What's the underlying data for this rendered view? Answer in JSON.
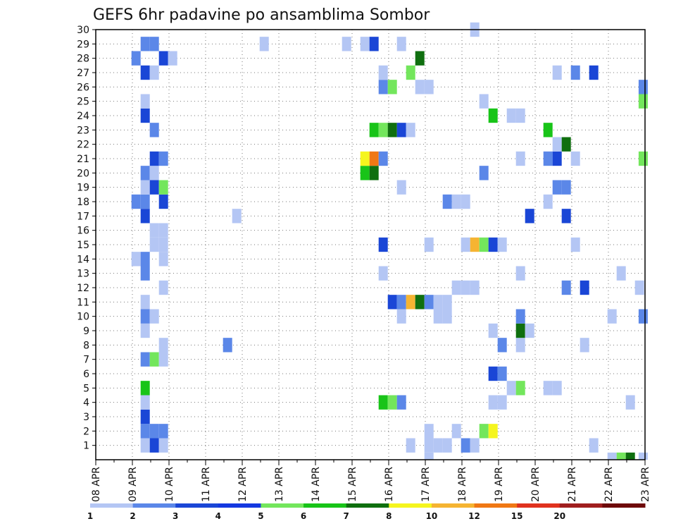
{
  "chart_data": {
    "type": "heatmap",
    "title": "GEFS 6hr padavine po ansamblima Sombor",
    "xlabel": "",
    "ylabel": "",
    "x_tick_labels": [
      "08 APR",
      "09 APR",
      "10 APR",
      "11 APR",
      "12 APR",
      "13 APR",
      "14 APR",
      "15 APR",
      "16 APR",
      "17 APR",
      "18 APR",
      "19 APR",
      "20 APR",
      "21 APR",
      "22 APR",
      "23 APR"
    ],
    "x_range_days": [
      8,
      23
    ],
    "y_tick_labels": [
      "1",
      "2",
      "3",
      "4",
      "5",
      "6",
      "7",
      "8",
      "9",
      "10",
      "11",
      "12",
      "13",
      "14",
      "15",
      "16",
      "17",
      "18",
      "19",
      "20",
      "21",
      "22",
      "23",
      "24",
      "25",
      "26",
      "27",
      "28",
      "29",
      "30"
    ],
    "ylim": [
      0,
      30
    ],
    "grid": "dotted",
    "colorbar": {
      "tick_labels": [
        "1",
        "2",
        "3",
        "4",
        "5",
        "6",
        "7",
        "8",
        "10",
        "12",
        "15",
        "20"
      ],
      "bounds": [
        1,
        2,
        3,
        4,
        5,
        6,
        7,
        8,
        10,
        12,
        15,
        20,
        25
      ],
      "colors": [
        "#b4c6f4",
        "#5b87e8",
        "#1a46d6",
        "#1438e0",
        "#73e65c",
        "#18c418",
        "#0f6f0f",
        "#f5f51e",
        "#f5b432",
        "#f07814",
        "#e0321e",
        "#a01e1e",
        "#6e0a0a"
      ]
    },
    "points": [
      [
        1,
        9.35,
        1.5
      ],
      [
        1,
        9.6,
        3.5
      ],
      [
        1,
        9.85,
        1.5
      ],
      [
        1,
        16.6,
        1.5
      ],
      [
        1,
        17.1,
        1.5
      ],
      [
        1,
        17.35,
        1.5
      ],
      [
        1,
        17.6,
        1.5
      ],
      [
        1,
        18.1,
        2.5
      ],
      [
        1,
        18.35,
        1.5
      ],
      [
        1,
        21.6,
        1.5
      ],
      [
        2,
        9.35,
        2.5
      ],
      [
        2,
        9.6,
        2.5
      ],
      [
        2,
        9.85,
        2.5
      ],
      [
        2,
        17.1,
        1.5
      ],
      [
        2,
        17.85,
        1.5
      ],
      [
        2,
        18.6,
        5.5
      ],
      [
        2,
        18.85,
        9
      ],
      [
        3,
        9.35,
        3.5
      ],
      [
        4,
        9.35,
        1.5
      ],
      [
        4,
        15.85,
        6.5
      ],
      [
        4,
        16.1,
        5.5
      ],
      [
        4,
        16.35,
        2.5
      ],
      [
        4,
        18.85,
        1.5
      ],
      [
        4,
        19.1,
        1.5
      ],
      [
        4,
        22.6,
        1.5
      ],
      [
        5,
        9.35,
        6.5
      ],
      [
        5,
        19.35,
        1.5
      ],
      [
        5,
        19.6,
        5.5
      ],
      [
        5,
        20.35,
        1.5
      ],
      [
        5,
        20.6,
        1.5
      ],
      [
        6,
        18.85,
        3.5
      ],
      [
        6,
        19.1,
        2.5
      ],
      [
        7,
        9.35,
        2.5
      ],
      [
        7,
        9.6,
        5.5
      ],
      [
        7,
        9.85,
        1.5
      ],
      [
        8,
        9.85,
        1.5
      ],
      [
        8,
        11.6,
        2.5
      ],
      [
        8,
        19.1,
        2.5
      ],
      [
        8,
        19.6,
        1.5
      ],
      [
        8,
        21.35,
        1.5
      ],
      [
        9,
        9.35,
        1.5
      ],
      [
        9,
        18.85,
        1.5
      ],
      [
        9,
        19.6,
        7.5
      ],
      [
        9,
        19.85,
        1.5
      ],
      [
        10,
        9.35,
        2.5
      ],
      [
        10,
        9.6,
        1.5
      ],
      [
        10,
        16.35,
        1.5
      ],
      [
        10,
        17.35,
        1.5
      ],
      [
        10,
        17.6,
        1.5
      ],
      [
        10,
        19.6,
        2.5
      ],
      [
        10,
        22.1,
        1.5
      ],
      [
        10,
        22.95,
        2.5
      ],
      [
        11,
        9.35,
        1.5
      ],
      [
        11,
        16.1,
        3.5
      ],
      [
        11,
        16.35,
        2.5
      ],
      [
        11,
        16.6,
        11
      ],
      [
        11,
        16.85,
        7.5
      ],
      [
        11,
        17.1,
        2.5
      ],
      [
        11,
        17.35,
        1.5
      ],
      [
        11,
        17.6,
        1.5
      ],
      [
        12,
        9.85,
        1.5
      ],
      [
        12,
        17.85,
        1.5
      ],
      [
        12,
        18.1,
        1.5
      ],
      [
        12,
        18.35,
        1.5
      ],
      [
        12,
        20.85,
        2.5
      ],
      [
        12,
        21.35,
        3.5
      ],
      [
        12,
        22.85,
        1.5
      ],
      [
        13,
        9.35,
        2.5
      ],
      [
        13,
        15.85,
        1.5
      ],
      [
        13,
        19.6,
        1.5
      ],
      [
        13,
        22.35,
        1.5
      ],
      [
        14,
        9.1,
        1.5
      ],
      [
        14,
        9.35,
        2.5
      ],
      [
        14,
        9.85,
        1.5
      ],
      [
        15,
        9.6,
        1.5
      ],
      [
        15,
        9.85,
        1.5
      ],
      [
        15,
        15.85,
        3.5
      ],
      [
        15,
        17.1,
        1.5
      ],
      [
        15,
        18.1,
        1.5
      ],
      [
        15,
        18.35,
        11
      ],
      [
        15,
        18.6,
        5.5
      ],
      [
        15,
        18.85,
        3.5
      ],
      [
        15,
        19.1,
        1.5
      ],
      [
        15,
        21.1,
        1.5
      ],
      [
        16,
        9.6,
        1.5
      ],
      [
        16,
        9.85,
        1.5
      ],
      [
        17,
        9.35,
        3.5
      ],
      [
        17,
        11.85,
        1.5
      ],
      [
        17,
        19.85,
        3.5
      ],
      [
        17,
        20.85,
        3.5
      ],
      [
        18,
        9.1,
        2.5
      ],
      [
        18,
        9.35,
        2.5
      ],
      [
        18,
        9.85,
        3.5
      ],
      [
        18,
        17.6,
        2.5
      ],
      [
        18,
        17.85,
        1.5
      ],
      [
        18,
        18.1,
        1.5
      ],
      [
        18,
        20.35,
        1.5
      ],
      [
        19,
        9.35,
        1.5
      ],
      [
        19,
        9.6,
        3.5
      ],
      [
        19,
        9.85,
        5.5
      ],
      [
        19,
        16.35,
        1.5
      ],
      [
        19,
        20.6,
        2.5
      ],
      [
        19,
        20.85,
        2.5
      ],
      [
        20,
        9.35,
        2.5
      ],
      [
        20,
        9.6,
        1.5
      ],
      [
        20,
        15.35,
        6.5
      ],
      [
        20,
        15.6,
        7.5
      ],
      [
        20,
        18.6,
        2.5
      ],
      [
        21,
        9.6,
        3.5
      ],
      [
        21,
        9.85,
        2.5
      ],
      [
        21,
        15.35,
        9
      ],
      [
        21,
        15.6,
        13
      ],
      [
        21,
        15.85,
        2.5
      ],
      [
        21,
        19.6,
        1.5
      ],
      [
        21,
        20.35,
        2.5
      ],
      [
        21,
        20.6,
        3.5
      ],
      [
        21,
        21.1,
        1.5
      ],
      [
        21,
        22.95,
        5.5
      ],
      [
        22,
        20.6,
        1.5
      ],
      [
        22,
        20.85,
        7.5
      ],
      [
        23,
        9.6,
        2.5
      ],
      [
        23,
        15.6,
        6.5
      ],
      [
        23,
        15.85,
        5.5
      ],
      [
        23,
        16.1,
        7.5
      ],
      [
        23,
        16.35,
        3.5
      ],
      [
        23,
        16.6,
        1.5
      ],
      [
        23,
        20.35,
        6.5
      ],
      [
        24,
        9.35,
        3.5
      ],
      [
        24,
        18.85,
        6.5
      ],
      [
        24,
        19.35,
        1.5
      ],
      [
        24,
        19.6,
        1.5
      ],
      [
        25,
        9.35,
        1.5
      ],
      [
        25,
        18.6,
        1.5
      ],
      [
        25,
        22.95,
        5.5
      ],
      [
        26,
        15.85,
        2.5
      ],
      [
        26,
        16.1,
        5.5
      ],
      [
        26,
        16.85,
        1.5
      ],
      [
        26,
        17.1,
        1.5
      ],
      [
        26,
        22.95,
        2.5
      ],
      [
        27,
        9.35,
        3.5
      ],
      [
        27,
        9.6,
        1.5
      ],
      [
        27,
        15.85,
        1.5
      ],
      [
        27,
        16.6,
        5.5
      ],
      [
        27,
        20.6,
        1.5
      ],
      [
        27,
        21.1,
        2.5
      ],
      [
        27,
        21.6,
        3.5
      ],
      [
        28,
        9.1,
        2.5
      ],
      [
        28,
        9.85,
        3.5
      ],
      [
        28,
        10.1,
        1.5
      ],
      [
        28,
        16.85,
        7.5
      ],
      [
        29,
        9.35,
        2.5
      ],
      [
        29,
        9.6,
        2.5
      ],
      [
        29,
        12.6,
        1.5
      ],
      [
        29,
        14.85,
        1.5
      ],
      [
        29,
        15.35,
        1.5
      ],
      [
        29,
        15.6,
        3.5
      ],
      [
        29,
        16.35,
        1.5
      ],
      [
        30,
        18.35,
        1.5
      ]
    ],
    "bottom_strip": [
      [
        17.1,
        1.5
      ],
      [
        22.1,
        1.5
      ],
      [
        22.35,
        5.5
      ],
      [
        22.6,
        7.5
      ],
      [
        22.95,
        1.5
      ]
    ]
  }
}
